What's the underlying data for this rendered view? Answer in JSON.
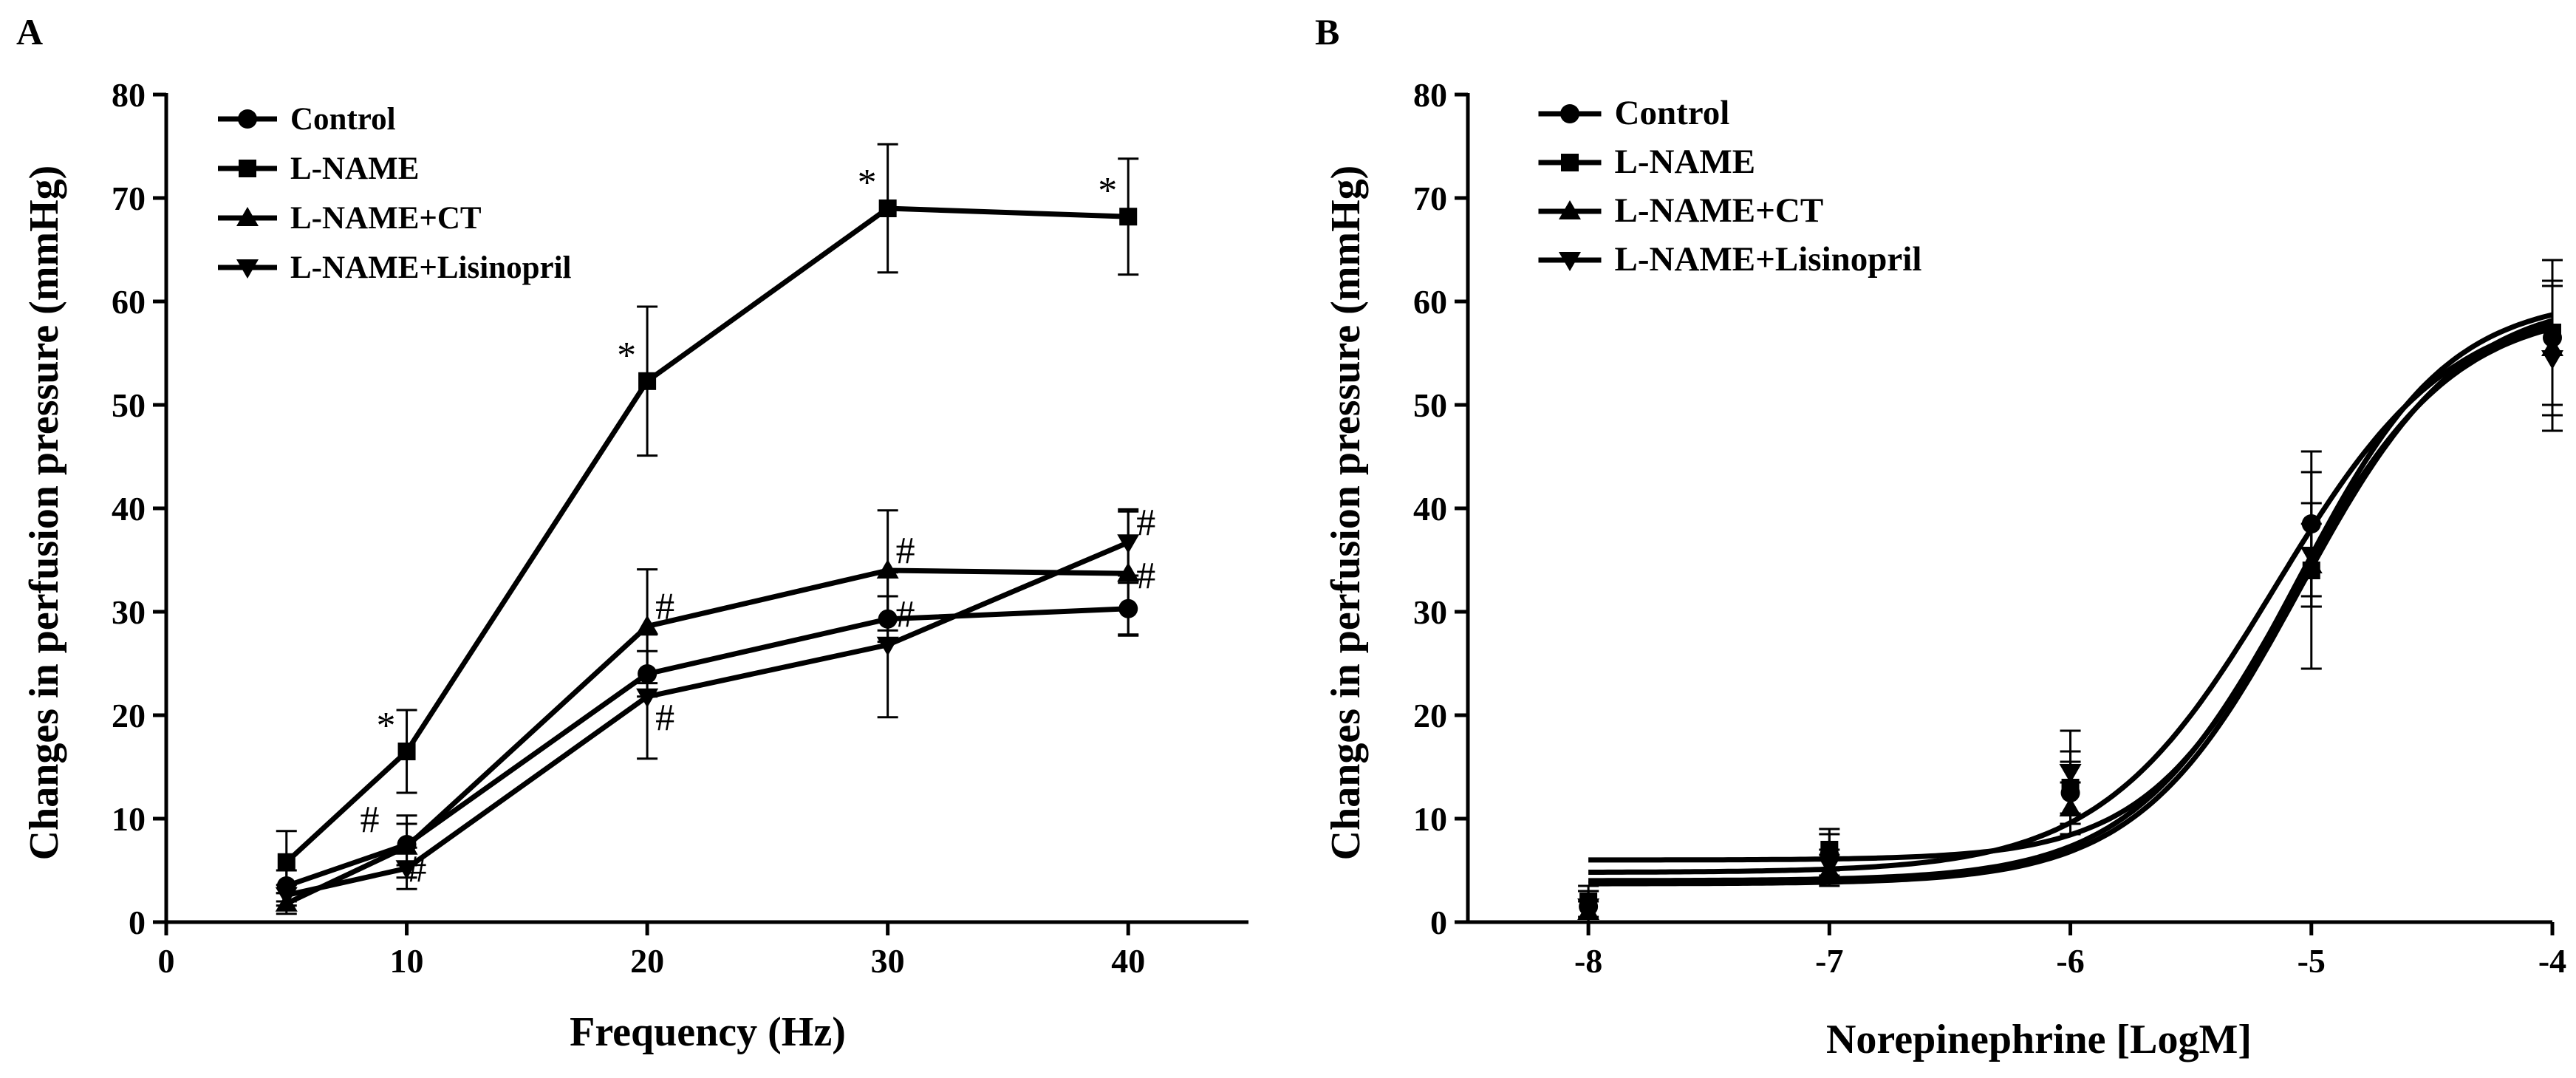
{
  "chart_data": [
    {
      "panel": "A",
      "type": "line",
      "title": "",
      "xlabel": "Frequency (Hz)",
      "ylabel": "Changes in perfusion pressure (mmHg)",
      "xlim": [
        0,
        45
      ],
      "ylim": [
        0,
        80
      ],
      "xticks": [
        0,
        10,
        20,
        30,
        40
      ],
      "yticks": [
        0,
        10,
        20,
        30,
        40,
        50,
        60,
        70,
        80
      ],
      "legend_position": "top-left",
      "x": [
        5,
        10,
        20,
        30,
        40
      ],
      "series": [
        {
          "name": "Control",
          "marker": "circle",
          "values": [
            3.5,
            7.5,
            24,
            29.3,
            30.3
          ],
          "errors": [
            1.5,
            2,
            2.2,
            2.2,
            2.5
          ],
          "annotations": [
            null,
            null,
            null,
            null,
            null
          ]
        },
        {
          "name": "L-NAME",
          "marker": "square",
          "values": [
            5.8,
            16.5,
            52.3,
            69,
            68.2
          ],
          "errors": [
            3,
            4,
            7.2,
            6.2,
            5.6
          ],
          "annotations": [
            null,
            "*",
            "*",
            "*",
            "*"
          ]
        },
        {
          "name": "L-NAME+CT",
          "marker": "triangle-up",
          "values": [
            1.8,
            7.3,
            28.6,
            34,
            33.7
          ],
          "errors": [
            1,
            3,
            5.5,
            5.8,
            6
          ],
          "annotations": [
            null,
            "#",
            "#",
            "#",
            "#"
          ]
        },
        {
          "name": "L-NAME+Lisinopril",
          "marker": "triangle-down",
          "values": [
            2.6,
            5.2,
            21.8,
            26.8,
            36.7
          ],
          "errors": [
            1,
            2,
            6,
            7,
            3.2
          ],
          "annotations": [
            null,
            "#",
            "#",
            "#",
            "#"
          ]
        }
      ]
    },
    {
      "panel": "B",
      "type": "line",
      "curve": "sigmoid-fit",
      "title": "",
      "xlabel": "Norepinephrine [LogM]",
      "ylabel": "Changes in perfusion pressure (mmHg)",
      "xlim": [
        -8.5,
        -4
      ],
      "ylim": [
        0,
        80
      ],
      "xticks": [
        -8,
        -7,
        -6,
        -5,
        -4
      ],
      "yticks": [
        0,
        10,
        20,
        30,
        40,
        50,
        60,
        70,
        80
      ],
      "legend_position": "top-left",
      "x": [
        -8,
        -7,
        -6,
        -5,
        -4
      ],
      "series": [
        {
          "name": "Control",
          "marker": "circle",
          "values": [
            1.5,
            6.5,
            12.5,
            38.5,
            56.5
          ],
          "errors": [
            1.5,
            2,
            3,
            7,
            7.5
          ],
          "fit": {
            "bottom": 4.8,
            "top": 60,
            "logEC50": -5.15,
            "hill": 1.2
          }
        },
        {
          "name": "L-NAME",
          "marker": "square",
          "values": [
            2,
            7,
            13,
            34,
            57
          ],
          "errors": [
            1.5,
            2,
            3.5,
            9.5,
            7
          ],
          "fit": {
            "bottom": 6,
            "top": 60.5,
            "logEC50": -5.05,
            "hill": 1.4
          }
        },
        {
          "name": "L-NAME+CT",
          "marker": "triangle-up",
          "values": [
            1,
            5,
            11,
            34.5,
            55.5
          ],
          "errors": [
            1,
            1.5,
            2.5,
            4,
            6.5
          ],
          "fit": {
            "bottom": 3.7,
            "top": 60.5,
            "logEC50": -5.05,
            "hill": 1.3
          }
        },
        {
          "name": "L-NAME+Lisinopril",
          "marker": "triangle-down",
          "values": [
            1.5,
            5.5,
            14.5,
            35.5,
            54.5
          ],
          "errors": [
            1.5,
            1.5,
            4,
            5,
            7
          ],
          "fit": {
            "bottom": 4,
            "top": 59.5,
            "logEC50": -5.08,
            "hill": 1.3
          }
        }
      ]
    }
  ]
}
